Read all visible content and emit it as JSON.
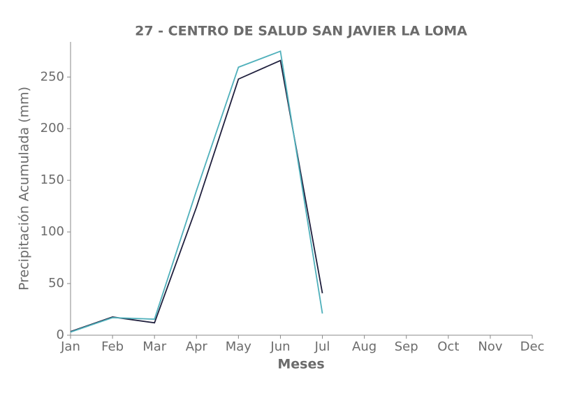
{
  "chart_data": {
    "type": "line",
    "title": "27 - CENTRO DE SALUD SAN JAVIER LA LOMA",
    "xlabel": "Meses",
    "ylabel": "Precipitación Acumulada (mm)",
    "categories": [
      "Jan",
      "Feb",
      "Mar",
      "Apr",
      "May",
      "Jun",
      "Jul",
      "Aug",
      "Sep",
      "Oct",
      "Nov",
      "Dec"
    ],
    "series": [
      {
        "color": "#1f1f3d",
        "values": [
          3.5,
          17.6,
          12,
          124,
          248,
          266,
          40.6,
          null,
          null,
          null,
          null,
          null
        ]
      },
      {
        "color": "#4fb0bb",
        "values": [
          3,
          17,
          15.5,
          140,
          259.5,
          275,
          21,
          null,
          null,
          null,
          null,
          null
        ]
      }
    ],
    "ylim": [
      0,
      284
    ],
    "yticks": [
      0,
      50,
      100,
      150,
      200,
      250
    ],
    "grid": false
  }
}
